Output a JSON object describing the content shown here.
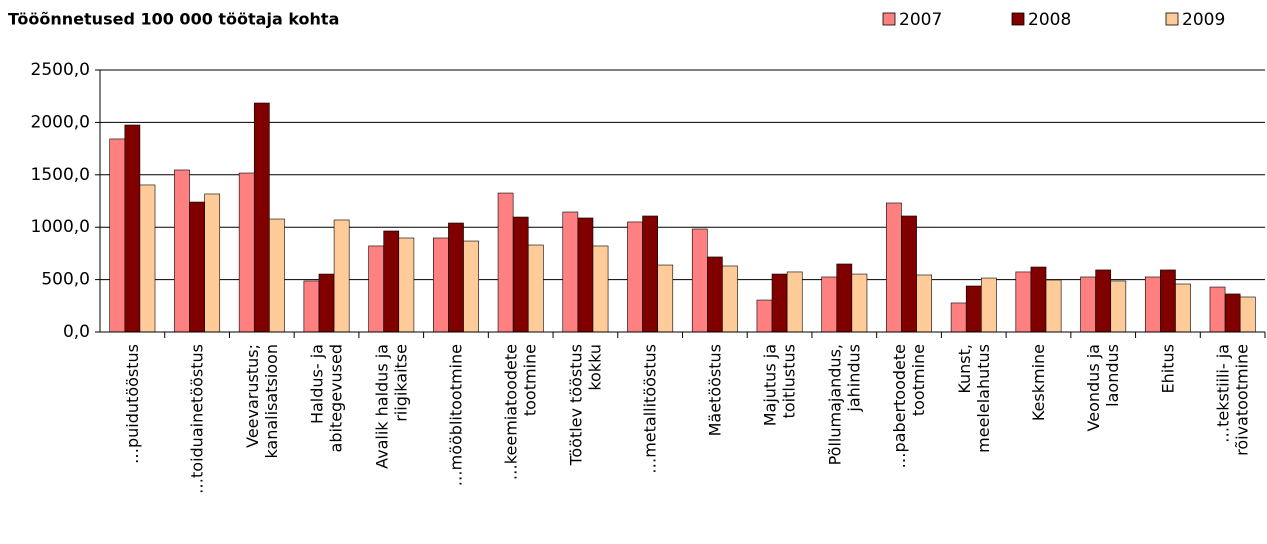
{
  "chart_data": {
    "type": "bar",
    "title": "Tööõnnetused 100 000 töötaja kohta",
    "categories": [
      "…puidutööstus",
      "…toiduainetööstus",
      "Veevarustus;\nkanalisatsioon",
      "Haldus- ja\nabitegevused",
      "Avalik haldus ja\nriigikaitse",
      "…mööblitootmine",
      "…keemiatoodete\ntootmine",
      "Töötlev tööstus\nkokku",
      "…metallitööstus",
      "Mäetööstus",
      "Majutus ja\ntoitlustus",
      "Põllumajandus,\njahindus",
      "…pabertoodete\ntootmine",
      "Kunst,\nmeelelahutus",
      "Keskmine",
      "Veondus ja\nlaondus",
      "Ehitus",
      "…tekstiili- ja\nrõivatootmine"
    ],
    "series": [
      {
        "name": "2007",
        "color": "#ff8080",
        "values": [
          1842,
          1546,
          1517,
          487,
          821,
          897,
          1326,
          1145,
          1050,
          983,
          305,
          525,
          1231,
          277,
          573,
          525,
          525,
          429
        ]
      },
      {
        "name": "2008",
        "color": "#800000",
        "values": [
          1975,
          1240,
          2185,
          553,
          964,
          1040,
          1097,
          1088,
          1107,
          716,
          553,
          649,
          1107,
          439,
          620,
          592,
          592,
          363
        ]
      },
      {
        "name": "2009",
        "color": "#ffcc99",
        "values": [
          1403,
          1317,
          1078,
          1069,
          897,
          868,
          830,
          821,
          639,
          630,
          573,
          553,
          544,
          515,
          496,
          487,
          458,
          334
        ]
      }
    ],
    "ylim": [
      0,
      2500
    ],
    "yticks": [
      {
        "value": 0,
        "label": "0,0"
      },
      {
        "value": 500,
        "label": "500,0"
      },
      {
        "value": 1000,
        "label": "1000,0"
      },
      {
        "value": 1500,
        "label": "1500,0"
      },
      {
        "value": 2000,
        "label": "2000,0"
      },
      {
        "value": 2500,
        "label": "2500,0"
      }
    ],
    "grid": true,
    "legend": "top-right"
  }
}
